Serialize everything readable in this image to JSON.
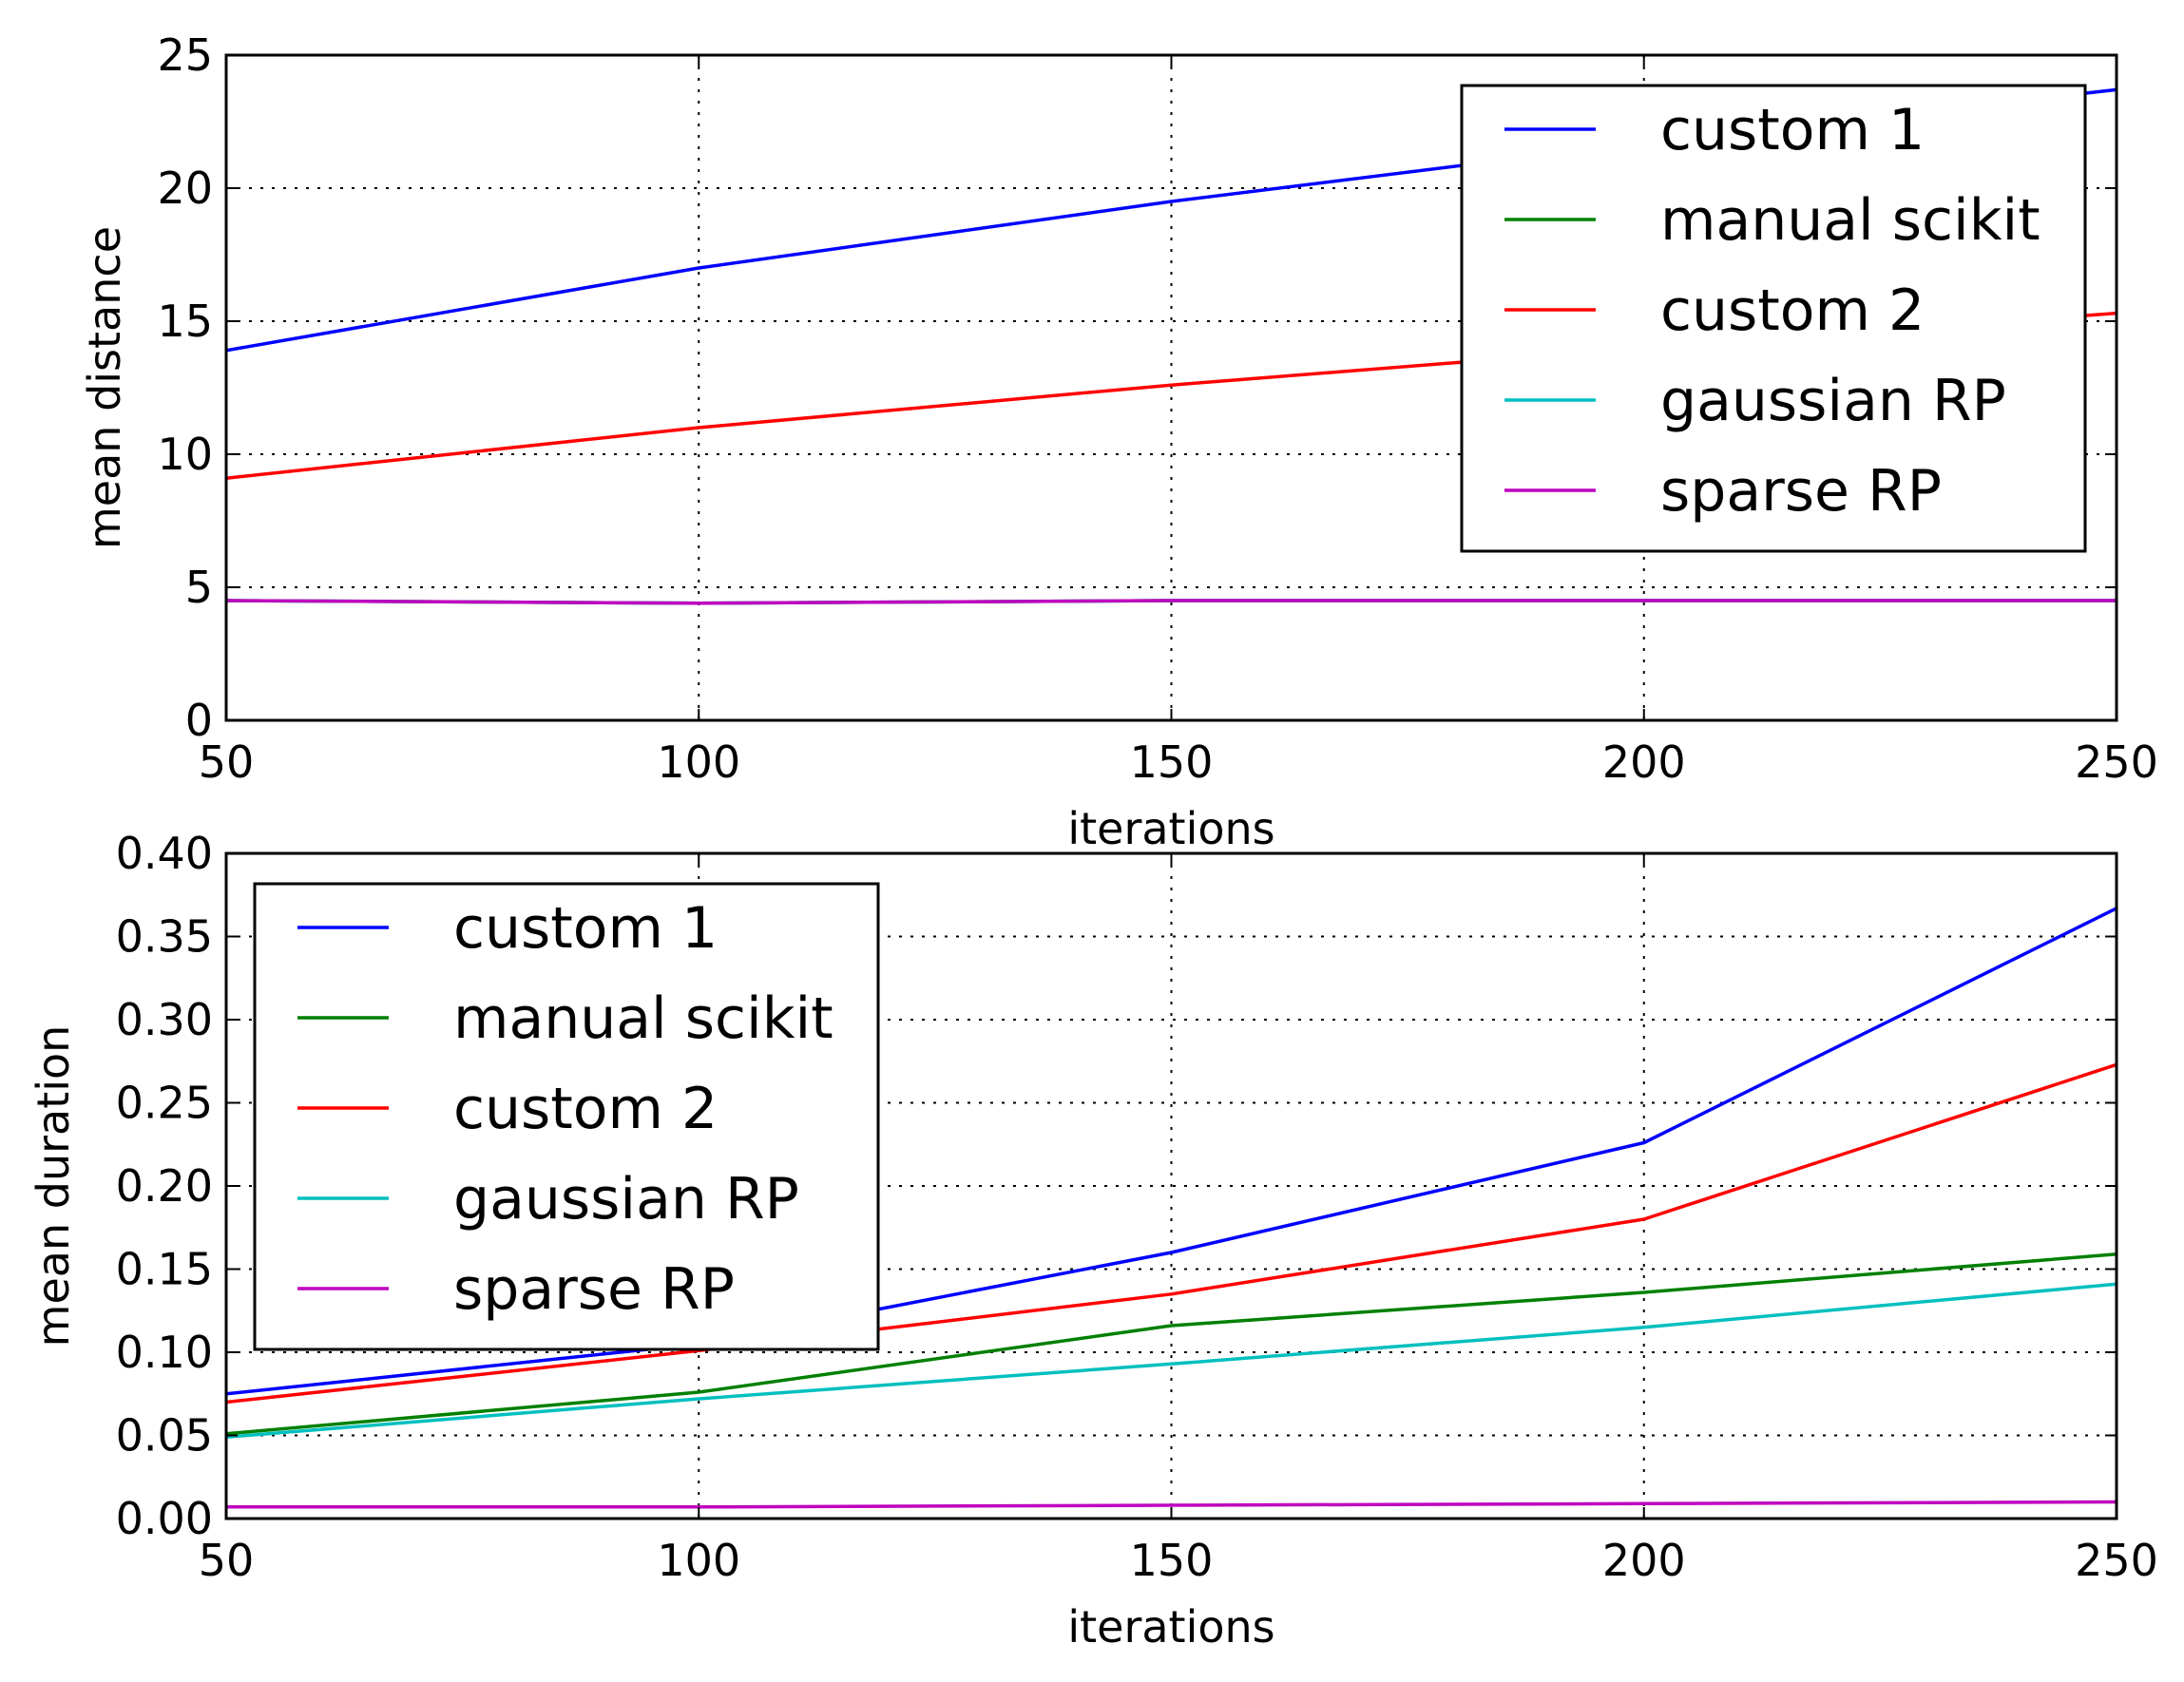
{
  "chart_data": [
    {
      "type": "line",
      "xlabel": "iterations",
      "ylabel": "mean distance",
      "xlim": [
        50,
        250
      ],
      "ylim": [
        0,
        25
      ],
      "x_ticks": [
        "50",
        "100",
        "150",
        "200",
        "250"
      ],
      "y_ticks": [
        "0",
        "5",
        "10",
        "15",
        "20",
        "25"
      ],
      "grid": true,
      "legend_position": "upper right",
      "x": [
        50,
        100,
        150,
        200,
        250
      ],
      "series": [
        {
          "name": "custom 1",
          "color": "#0000ff",
          "values": [
            13.9,
            17.0,
            19.5,
            21.7,
            23.7
          ]
        },
        {
          "name": "manual scikit",
          "color": "#008000",
          "values": [
            4.5,
            4.4,
            4.5,
            4.5,
            4.5
          ]
        },
        {
          "name": "custom 2",
          "color": "#ff0000",
          "values": [
            9.1,
            11.0,
            12.6,
            14.0,
            15.3
          ]
        },
        {
          "name": "gaussian RP",
          "color": "#00bfbf",
          "values": [
            4.5,
            4.4,
            4.5,
            4.5,
            4.5
          ]
        },
        {
          "name": "sparse RP",
          "color": "#bf00bf",
          "values": [
            4.5,
            4.4,
            4.5,
            4.5,
            4.5
          ]
        }
      ]
    },
    {
      "type": "line",
      "xlabel": "iterations",
      "ylabel": "mean duration",
      "xlim": [
        50,
        250
      ],
      "ylim": [
        0,
        0.4
      ],
      "x_ticks": [
        "50",
        "100",
        "150",
        "200",
        "250"
      ],
      "y_ticks": [
        "0.00",
        "0.05",
        "0.10",
        "0.15",
        "0.20",
        "0.25",
        "0.30",
        "0.35",
        "0.40"
      ],
      "grid": true,
      "legend_position": "upper left",
      "x": [
        50,
        100,
        150,
        200,
        250
      ],
      "series": [
        {
          "name": "custom 1",
          "color": "#0000ff",
          "values": [
            0.075,
            0.105,
            0.16,
            0.226,
            0.367
          ]
        },
        {
          "name": "manual scikit",
          "color": "#008000",
          "values": [
            0.051,
            0.076,
            0.116,
            0.136,
            0.159
          ]
        },
        {
          "name": "custom 2",
          "color": "#ff0000",
          "values": [
            0.07,
            0.101,
            0.135,
            0.18,
            0.273
          ]
        },
        {
          "name": "gaussian RP",
          "color": "#00bfbf",
          "values": [
            0.049,
            0.072,
            0.093,
            0.115,
            0.141
          ]
        },
        {
          "name": "sparse RP",
          "color": "#bf00bf",
          "values": [
            0.007,
            0.007,
            0.008,
            0.009,
            0.01
          ]
        }
      ]
    }
  ]
}
